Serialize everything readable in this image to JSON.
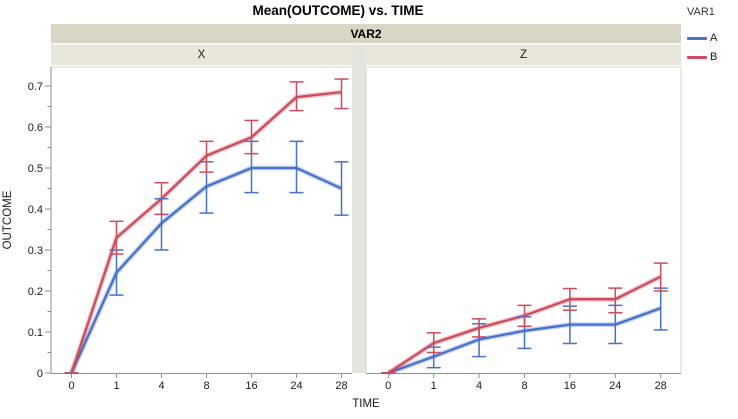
{
  "title": "Mean(OUTCOME) vs. TIME",
  "group_band": {
    "label": "VAR2"
  },
  "legend": {
    "title": "VAR1",
    "items": [
      {
        "label": "A",
        "color": "#4671cf"
      },
      {
        "label": "B",
        "color": "#cf4a5a"
      }
    ]
  },
  "axes": {
    "y_label": "OUTCOME",
    "x_label": "TIME",
    "y_tick_values": [
      0,
      0.1,
      0.2,
      0.3,
      0.4,
      0.5,
      0.6,
      0.7
    ],
    "y_tick_labels": [
      "0",
      "0.1",
      "0.2",
      "0.3",
      "0.4",
      "0.5",
      "0.6",
      "0.7"
    ],
    "y_minor_ticks": [
      0.05,
      0.15,
      0.25,
      0.35,
      0.45,
      0.55,
      0.65
    ],
    "x_tick_labels": [
      "0",
      "1",
      "4",
      "8",
      "16",
      "24",
      "28"
    ]
  },
  "chart_data": {
    "type": "line",
    "title": "Mean(OUTCOME) vs. TIME",
    "xlabel": "TIME",
    "ylabel": "OUTCOME",
    "ylim": [
      0,
      0.745
    ],
    "grid": false,
    "legend_position": "right",
    "error_bars": true,
    "categories": [
      0,
      1,
      4,
      8,
      16,
      24,
      28
    ],
    "panels": [
      {
        "label": "X",
        "series": [
          {
            "name": "A",
            "color": "#4671cf",
            "values": [
              0,
              0.245,
              0.365,
              0.455,
              0.5,
              0.5,
              0.45
            ],
            "ci_low": [
              0,
              0.19,
              0.3,
              0.39,
              0.44,
              0.44,
              0.385
            ],
            "ci_high": [
              0,
              0.3,
              0.425,
              0.515,
              0.565,
              0.565,
              0.515
            ]
          },
          {
            "name": "B",
            "color": "#cf4a5a",
            "values": [
              0,
              0.33,
              0.425,
              0.53,
              0.575,
              0.673,
              0.685
            ],
            "ci_low": [
              0,
              0.29,
              0.387,
              0.49,
              0.535,
              0.64,
              0.645
            ],
            "ci_high": [
              0,
              0.37,
              0.464,
              0.565,
              0.616,
              0.71,
              0.717
            ]
          }
        ]
      },
      {
        "label": "Z",
        "series": [
          {
            "name": "A",
            "color": "#4671cf",
            "values": [
              0,
              0.04,
              0.082,
              0.103,
              0.118,
              0.118,
              0.158
            ],
            "ci_low": [
              0,
              0.013,
              0.04,
              0.06,
              0.072,
              0.072,
              0.105
            ],
            "ci_high": [
              0,
              0.063,
              0.12,
              0.137,
              0.163,
              0.165,
              0.207
            ]
          },
          {
            "name": "B",
            "color": "#cf4a5a",
            "values": [
              0,
              0.073,
              0.11,
              0.14,
              0.18,
              0.18,
              0.235
            ],
            "ci_low": [
              0,
              0.05,
              0.088,
              0.114,
              0.153,
              0.147,
              0.2
            ],
            "ci_high": [
              0,
              0.098,
              0.132,
              0.165,
              0.206,
              0.207,
              0.268
            ]
          }
        ]
      }
    ]
  }
}
